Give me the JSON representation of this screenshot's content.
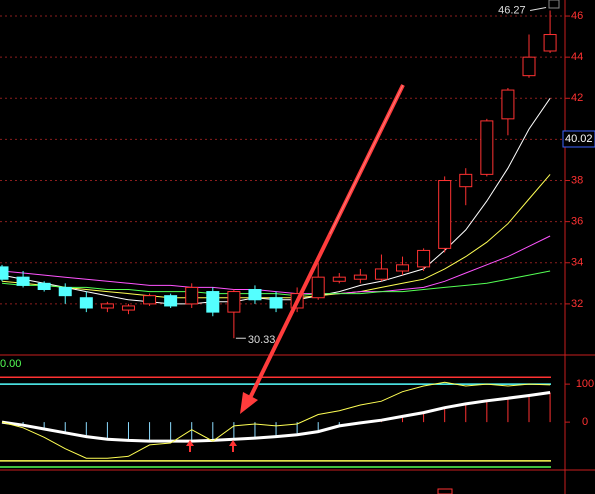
{
  "chart_data": [
    {
      "type": "candlestick",
      "open": [
        33.8,
        33.3,
        33.0,
        32.8,
        32.3,
        31.8,
        31.7,
        32.0,
        32.4,
        32.0,
        32.6,
        31.6,
        32.7,
        32.3,
        31.8,
        32.3,
        33.1,
        33.2,
        33.2,
        33.6,
        33.8,
        34.7,
        37.7,
        38.3,
        41.0,
        43.1,
        44.3
      ],
      "high": [
        33.9,
        33.6,
        33.1,
        33.0,
        32.6,
        32.1,
        32.0,
        32.5,
        32.5,
        33.0,
        32.8,
        32.7,
        32.9,
        32.6,
        32.8,
        34.0,
        33.5,
        33.7,
        34.4,
        34.3,
        34.7,
        38.2,
        38.6,
        41.0,
        42.5,
        45.1,
        46.27
      ],
      "low": [
        33.1,
        32.8,
        32.6,
        32.0,
        31.6,
        31.6,
        31.5,
        31.9,
        31.8,
        31.8,
        31.4,
        30.33,
        32.0,
        31.6,
        31.6,
        32.2,
        33.0,
        33.0,
        33.1,
        33.4,
        33.6,
        34.5,
        36.8,
        38.2,
        40.2,
        43.0,
        44.2
      ],
      "close": [
        33.2,
        32.9,
        32.7,
        32.4,
        31.8,
        32.0,
        31.9,
        32.4,
        31.9,
        32.8,
        31.6,
        32.6,
        32.2,
        31.8,
        32.5,
        33.3,
        33.3,
        33.4,
        33.7,
        33.9,
        34.6,
        38.0,
        38.3,
        40.9,
        42.4,
        44.0,
        45.1
      ],
      "up_color": "#ff3232",
      "down_color": "#54ffff",
      "series": [
        {
          "color": "#ffffff",
          "values": [
            33.4,
            33.2,
            33.0,
            32.8,
            32.6,
            32.4,
            32.2,
            32.1,
            32.0,
            32.0,
            32.1,
            32.1,
            32.3,
            32.2,
            32.2,
            32.4,
            32.6,
            32.9,
            33.1,
            33.4,
            33.7,
            34.6,
            35.6,
            37.0,
            38.6,
            40.5,
            42.0
          ]
        },
        {
          "color": "#ffff54",
          "values": [
            33.1,
            33.0,
            32.9,
            32.8,
            32.7,
            32.6,
            32.5,
            32.4,
            32.3,
            32.3,
            32.3,
            32.3,
            32.3,
            32.3,
            32.3,
            32.4,
            32.5,
            32.6,
            32.8,
            33.0,
            33.2,
            33.7,
            34.3,
            35.0,
            35.9,
            37.1,
            38.3
          ]
        },
        {
          "color": "#ff54ff",
          "values": [
            33.6,
            33.5,
            33.4,
            33.3,
            33.2,
            33.1,
            33.0,
            32.9,
            32.9,
            32.8,
            32.8,
            32.7,
            32.7,
            32.6,
            32.5,
            32.5,
            32.5,
            32.6,
            32.6,
            32.7,
            32.8,
            33.1,
            33.5,
            33.9,
            34.3,
            34.8,
            35.3
          ]
        },
        {
          "color": "#54ff54",
          "values": [
            33.0,
            32.9,
            32.9,
            32.8,
            32.8,
            32.7,
            32.7,
            32.6,
            32.6,
            32.6,
            32.5,
            32.5,
            32.5,
            32.5,
            32.4,
            32.5,
            32.5,
            32.5,
            32.6,
            32.6,
            32.7,
            32.8,
            32.9,
            33.0,
            33.2,
            33.4,
            33.6
          ]
        }
      ],
      "ylim": [
        29.66,
        46.78
      ],
      "yticks": [
        32,
        34,
        36,
        38,
        40,
        42,
        44,
        46
      ],
      "grid": true,
      "price_marker": 40.02
    },
    {
      "type": "indicator",
      "value_label": "0.00",
      "series": [
        {
          "color": "#ffffff",
          "width": 3,
          "values": [
            0,
            -8,
            -18,
            -28,
            -38,
            -45,
            -48,
            -50,
            -50,
            -50,
            -48,
            -45,
            -42,
            -38,
            -33,
            -25,
            -10,
            -2,
            5,
            15,
            25,
            38,
            48,
            56,
            63,
            70,
            78
          ]
        },
        {
          "color": "#ffff54",
          "width": 1,
          "values": [
            0,
            -15,
            -40,
            -70,
            -95,
            -95,
            -90,
            -60,
            -55,
            -20,
            -50,
            -10,
            -5,
            -10,
            -5,
            20,
            30,
            45,
            55,
            80,
            95,
            105,
            95,
            100,
            95,
            100,
            98
          ]
        }
      ],
      "levels": [
        {
          "value": 118,
          "color": "#ff3232"
        },
        {
          "value": 100,
          "color": "#54ffff"
        },
        {
          "value": -102,
          "color": "#ffff54"
        },
        {
          "value": -118,
          "color": "#54ff54"
        }
      ],
      "ylim": [
        -126,
        174
      ],
      "yticks": [
        0,
        100
      ]
    }
  ]
}
